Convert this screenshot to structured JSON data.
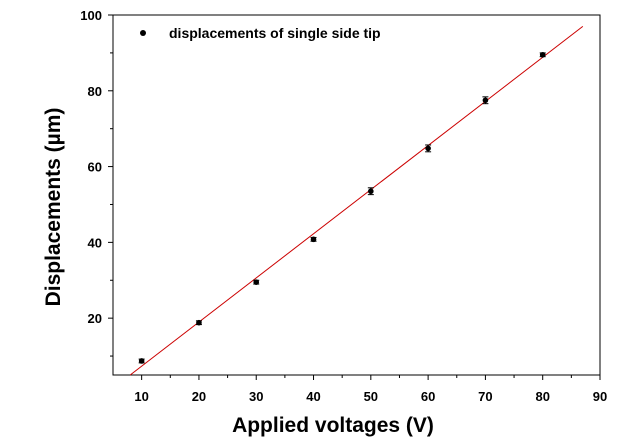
{
  "chart_data": {
    "type": "scatter",
    "title": "",
    "xlabel": "Applied voltages (V)",
    "ylabel": "Displacements (µm)",
    "xlim": [
      5,
      90
    ],
    "ylim": [
      5,
      100
    ],
    "x_ticks": [
      10,
      20,
      30,
      40,
      50,
      60,
      70,
      80,
      90
    ],
    "y_ticks": [
      20,
      40,
      60,
      80,
      100
    ],
    "grid": false,
    "legend_position": "top-left",
    "series": [
      {
        "name": "displacements of single side tip",
        "marker": "circle",
        "color": "#000000",
        "points": [
          {
            "x": 10,
            "y": 8.7,
            "err": 0.5
          },
          {
            "x": 20,
            "y": 18.8,
            "err": 0.5
          },
          {
            "x": 30,
            "y": 29.5,
            "err": 0.5
          },
          {
            "x": 40,
            "y": 40.8,
            "err": 0.5
          },
          {
            "x": 50,
            "y": 53.5,
            "err": 0.9
          },
          {
            "x": 60,
            "y": 64.8,
            "err": 0.9
          },
          {
            "x": 70,
            "y": 77.5,
            "err": 0.9
          },
          {
            "x": 80,
            "y": 89.5,
            "err": 0.5
          }
        ]
      }
    ],
    "fit_line": {
      "color": "#cc0000",
      "x": [
        8,
        87
      ],
      "y": [
        5,
        97
      ]
    }
  }
}
